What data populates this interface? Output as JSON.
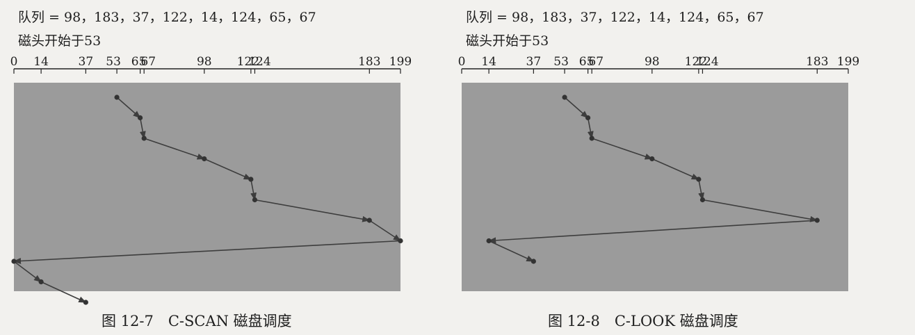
{
  "figures": [
    {
      "queue_text": "队列 = 98，183，37，122，14，124，65，67",
      "head_text": "磁头开始于53",
      "caption": "图 12-7　C-SCAN 磁盘调度",
      "chart_data": {
        "type": "line",
        "x_ticks": [
          0,
          14,
          37,
          53,
          65,
          67,
          98,
          122,
          124,
          183,
          199
        ],
        "xlim": [
          0,
          199
        ],
        "path": [
          53,
          65,
          67,
          98,
          122,
          124,
          183,
          199,
          0,
          14,
          37
        ],
        "grid": false,
        "background": "#9b9b9b",
        "line_color": "#3d3d3d"
      }
    },
    {
      "queue_text": "队列 = 98，183，37，122，14，124，65，67",
      "head_text": "磁头开始于53",
      "caption": "图 12-8　C-LOOK 磁盘调度",
      "chart_data": {
        "type": "line",
        "x_ticks": [
          0,
          14,
          37,
          53,
          65,
          67,
          98,
          122,
          124,
          183,
          199
        ],
        "xlim": [
          0,
          199
        ],
        "path": [
          53,
          65,
          67,
          98,
          122,
          124,
          183,
          14,
          37
        ],
        "grid": false,
        "background": "#9b9b9b",
        "line_color": "#3d3d3d"
      }
    }
  ]
}
